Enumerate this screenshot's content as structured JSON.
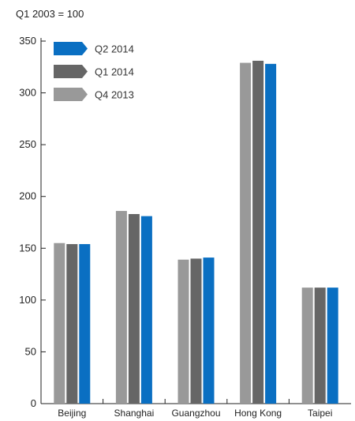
{
  "chart_data": {
    "type": "bar",
    "unit_label": "Q1 2003 = 100",
    "categories": [
      "Beijing",
      "Shanghai",
      "Guangzhou",
      "Hong Kong",
      "Taipei"
    ],
    "series": [
      {
        "name": "Q4 2013",
        "color": "#999999",
        "values": [
          155,
          186,
          139,
          329,
          112
        ]
      },
      {
        "name": "Q1 2014",
        "color": "#666666",
        "values": [
          154,
          183,
          140,
          331,
          112
        ]
      },
      {
        "name": "Q2 2014",
        "color": "#0a6fc2",
        "values": [
          154,
          181,
          141,
          328,
          112
        ]
      }
    ],
    "legend_order": [
      "Q2 2014",
      "Q1 2014",
      "Q4 2013"
    ],
    "legend_position": "top-left",
    "ylim": [
      0,
      350
    ],
    "yticks": [
      0,
      50,
      100,
      150,
      200,
      250,
      300,
      350
    ],
    "grid": false
  }
}
